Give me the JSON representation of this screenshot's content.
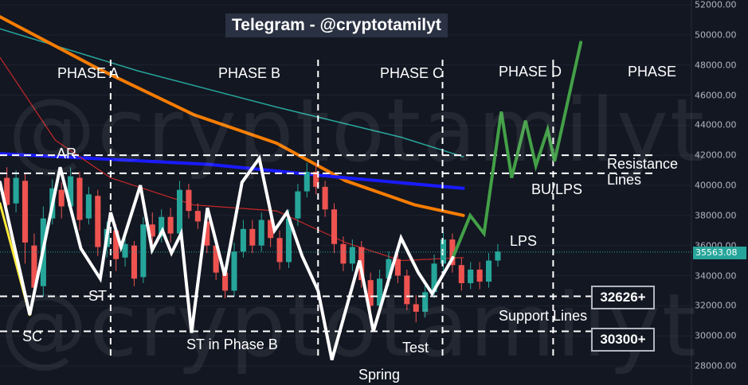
{
  "title": "Telegram - @cryptotamilyt",
  "watermark": "@cryptotamilyt",
  "phases": [
    "PHASE A",
    "PHASE B",
    "PHASE C",
    "PHASE D",
    "PHASE"
  ],
  "annotations": {
    "ar": "AR",
    "st": "ST",
    "sc": "SC",
    "st_phase_b": "ST in Phase B",
    "spring": "Spring",
    "test": "Test",
    "lps": "LPS",
    "bu_lps": "BU/LPS",
    "resistance": "Resistance Lines",
    "support": "Support Lines"
  },
  "current_price": "35563.08",
  "levels": {
    "support_upper": "32626+",
    "support_lower": "30300+"
  },
  "colors": {
    "background": "#131722",
    "up": "#26a69a",
    "down": "#ef5350",
    "wyckoff_path": "#ffffff",
    "projection": "#43a047",
    "ma_orange": "#f57c00",
    "ma_blue": "#1a1aff",
    "ma_teal": "#26a69a",
    "ma_red": "#c62828",
    "sc_line": "#ffeb3b"
  },
  "chart_data": {
    "type": "line",
    "title": "Telegram - @cryptotamilyt",
    "y_axis": {
      "ticks": [
        "52000.00",
        "50000.00",
        "48000.00",
        "46000.00",
        "44000.00",
        "42000.00",
        "40000.00",
        "38000.00",
        "36000.00",
        "34000.00",
        "32000.00",
        "30000.00",
        "28000.00"
      ],
      "ylim": [
        27500,
        52300
      ]
    },
    "x_range": [
      0,
      100
    ],
    "horizontal_levels": [
      {
        "role": "resistance",
        "value": 42000
      },
      {
        "role": "resistance",
        "value": 40800
      },
      {
        "role": "support",
        "value": 32626
      },
      {
        "role": "support",
        "value": 30300
      }
    ],
    "phase_dividers_x": [
      16,
      46,
      64,
      80
    ],
    "wyckoff_path": [
      {
        "x": 0,
        "y": 40200
      },
      {
        "x": 4.3,
        "y": 31400
      },
      {
        "x": 8.7,
        "y": 41200
      },
      {
        "x": 11.7,
        "y": 35800
      },
      {
        "x": 14.5,
        "y": 33800
      },
      {
        "x": 16,
        "y": 38200
      },
      {
        "x": 17.5,
        "y": 35900
      },
      {
        "x": 20.3,
        "y": 40000
      },
      {
        "x": 22,
        "y": 35700
      },
      {
        "x": 23.5,
        "y": 37000
      },
      {
        "x": 24.8,
        "y": 35500
      },
      {
        "x": 26.2,
        "y": 36800
      },
      {
        "x": 27.7,
        "y": 30200
      },
      {
        "x": 30,
        "y": 38500
      },
      {
        "x": 32.5,
        "y": 34000
      },
      {
        "x": 35,
        "y": 40200
      },
      {
        "x": 37.5,
        "y": 41800
      },
      {
        "x": 39.7,
        "y": 37000
      },
      {
        "x": 41.5,
        "y": 38200
      },
      {
        "x": 43.7,
        "y": 35300
      },
      {
        "x": 46,
        "y": 33000
      },
      {
        "x": 48,
        "y": 28400
      },
      {
        "x": 52,
        "y": 35000
      },
      {
        "x": 54,
        "y": 30300
      },
      {
        "x": 58,
        "y": 36500
      },
      {
        "x": 60.5,
        "y": 34200
      },
      {
        "x": 62.5,
        "y": 32800
      },
      {
        "x": 65.5,
        "y": 35200
      }
    ],
    "projection_path": [
      {
        "x": 65.5,
        "y": 35200
      },
      {
        "x": 68,
        "y": 38000
      },
      {
        "x": 70,
        "y": 36800
      },
      {
        "x": 72.5,
        "y": 44900
      },
      {
        "x": 74,
        "y": 40500
      },
      {
        "x": 76,
        "y": 44300
      },
      {
        "x": 77.5,
        "y": 41300
      },
      {
        "x": 79.2,
        "y": 43700
      },
      {
        "x": 80.2,
        "y": 41600
      },
      {
        "x": 84,
        "y": 49500
      }
    ],
    "sc_line": [
      {
        "x": 0,
        "y": 38800
      },
      {
        "x": 4.3,
        "y": 31400
      }
    ],
    "moving_averages": [
      {
        "color": "#26a69a",
        "points": [
          {
            "x": 0,
            "y": 50400
          },
          {
            "x": 20,
            "y": 47600
          },
          {
            "x": 40,
            "y": 45200
          },
          {
            "x": 58,
            "y": 43200
          },
          {
            "x": 67,
            "y": 41900
          }
        ]
      },
      {
        "color": "#f57c00",
        "points": [
          {
            "x": 0,
            "y": 51200
          },
          {
            "x": 14,
            "y": 47800
          },
          {
            "x": 28,
            "y": 44700
          },
          {
            "x": 40,
            "y": 42800
          },
          {
            "x": 50,
            "y": 40300
          },
          {
            "x": 60,
            "y": 38700
          },
          {
            "x": 67,
            "y": 38000
          }
        ]
      },
      {
        "color": "#1a1aff",
        "points": [
          {
            "x": 0,
            "y": 42100
          },
          {
            "x": 30,
            "y": 41400
          },
          {
            "x": 50,
            "y": 40500
          },
          {
            "x": 67,
            "y": 39800
          }
        ]
      },
      {
        "color": "#c62828",
        "points": [
          {
            "x": 0,
            "y": 48500
          },
          {
            "x": 8,
            "y": 43000
          },
          {
            "x": 16,
            "y": 40500
          },
          {
            "x": 28,
            "y": 38700
          },
          {
            "x": 40,
            "y": 38300
          },
          {
            "x": 50,
            "y": 36200
          },
          {
            "x": 58,
            "y": 35000
          },
          {
            "x": 67,
            "y": 35200
          }
        ]
      }
    ],
    "candles": [
      {
        "o": 40500,
        "c": 38700,
        "h": 41200,
        "l": 38000
      },
      {
        "o": 38800,
        "c": 40500,
        "h": 41000,
        "l": 38200
      },
      {
        "o": 40300,
        "c": 36200,
        "h": 40800,
        "l": 34800
      },
      {
        "o": 36000,
        "c": 33200,
        "h": 36800,
        "l": 32400
      },
      {
        "o": 33300,
        "c": 37800,
        "h": 38600,
        "l": 32600
      },
      {
        "o": 37800,
        "c": 39800,
        "h": 40400,
        "l": 37400
      },
      {
        "o": 39700,
        "c": 38600,
        "h": 40200,
        "l": 37800
      },
      {
        "o": 38600,
        "c": 40600,
        "h": 41200,
        "l": 38200
      },
      {
        "o": 40500,
        "c": 37700,
        "h": 40900,
        "l": 37000
      },
      {
        "o": 37800,
        "c": 39400,
        "h": 39900,
        "l": 37400
      },
      {
        "o": 39300,
        "c": 35900,
        "h": 39700,
        "l": 35300
      },
      {
        "o": 35900,
        "c": 37100,
        "h": 37600,
        "l": 35200
      },
      {
        "o": 37000,
        "c": 35100,
        "h": 37400,
        "l": 34300
      },
      {
        "o": 35200,
        "c": 36100,
        "h": 36600,
        "l": 34600
      },
      {
        "o": 36000,
        "c": 33800,
        "h": 36300,
        "l": 33300
      },
      {
        "o": 33900,
        "c": 37400,
        "h": 37900,
        "l": 33500
      },
      {
        "o": 37400,
        "c": 36600,
        "h": 38200,
        "l": 36000
      },
      {
        "o": 36600,
        "c": 37900,
        "h": 38400,
        "l": 36200
      },
      {
        "o": 37900,
        "c": 36800,
        "h": 38500,
        "l": 36200
      },
      {
        "o": 36800,
        "c": 39700,
        "h": 40300,
        "l": 36400
      },
      {
        "o": 39700,
        "c": 38300,
        "h": 40100,
        "l": 37800
      },
      {
        "o": 38300,
        "c": 37600,
        "h": 38800,
        "l": 37100
      },
      {
        "o": 37600,
        "c": 36000,
        "h": 38000,
        "l": 35500
      },
      {
        "o": 36000,
        "c": 34200,
        "h": 36500,
        "l": 33700
      },
      {
        "o": 34200,
        "c": 33000,
        "h": 34600,
        "l": 32500
      },
      {
        "o": 33000,
        "c": 35600,
        "h": 36200,
        "l": 32600
      },
      {
        "o": 35600,
        "c": 37100,
        "h": 37700,
        "l": 35200
      },
      {
        "o": 37100,
        "c": 36000,
        "h": 37700,
        "l": 35500
      },
      {
        "o": 36000,
        "c": 37700,
        "h": 38200,
        "l": 35600
      },
      {
        "o": 37700,
        "c": 36500,
        "h": 38100,
        "l": 35900
      },
      {
        "o": 36500,
        "c": 34900,
        "h": 37000,
        "l": 34400
      },
      {
        "o": 34900,
        "c": 37800,
        "h": 38400,
        "l": 34500
      },
      {
        "o": 37800,
        "c": 39600,
        "h": 40100,
        "l": 37300
      },
      {
        "o": 39600,
        "c": 40900,
        "h": 41500,
        "l": 39200
      },
      {
        "o": 40900,
        "c": 39900,
        "h": 41500,
        "l": 39400
      },
      {
        "o": 39900,
        "c": 38400,
        "h": 40300,
        "l": 37900
      },
      {
        "o": 38400,
        "c": 36100,
        "h": 38800,
        "l": 35500
      },
      {
        "o": 36100,
        "c": 34800,
        "h": 36600,
        "l": 34300
      },
      {
        "o": 34800,
        "c": 35900,
        "h": 36400,
        "l": 34300
      },
      {
        "o": 35900,
        "c": 33700,
        "h": 36300,
        "l": 33200
      },
      {
        "o": 33700,
        "c": 32000,
        "h": 34200,
        "l": 31400
      },
      {
        "o": 32000,
        "c": 33800,
        "h": 34400,
        "l": 31600
      },
      {
        "o": 33800,
        "c": 35100,
        "h": 35600,
        "l": 33300
      },
      {
        "o": 35100,
        "c": 34000,
        "h": 35500,
        "l": 33500
      },
      {
        "o": 34000,
        "c": 32100,
        "h": 34400,
        "l": 31700
      },
      {
        "o": 32100,
        "c": 31600,
        "h": 32700,
        "l": 30900
      },
      {
        "o": 31600,
        "c": 32900,
        "h": 33400,
        "l": 31200
      },
      {
        "o": 32900,
        "c": 34800,
        "h": 35400,
        "l": 32500
      },
      {
        "o": 34800,
        "c": 36400,
        "h": 36900,
        "l": 34300
      },
      {
        "o": 36400,
        "c": 34700,
        "h": 36800,
        "l": 34200
      },
      {
        "o": 34700,
        "c": 33500,
        "h": 35200,
        "l": 33000
      },
      {
        "o": 33500,
        "c": 34400,
        "h": 34900,
        "l": 33100
      },
      {
        "o": 34400,
        "c": 33600,
        "h": 34900,
        "l": 33100
      },
      {
        "o": 33600,
        "c": 35000,
        "h": 35500,
        "l": 33200
      },
      {
        "o": 35000,
        "c": 35600,
        "h": 36100,
        "l": 34600
      }
    ]
  }
}
